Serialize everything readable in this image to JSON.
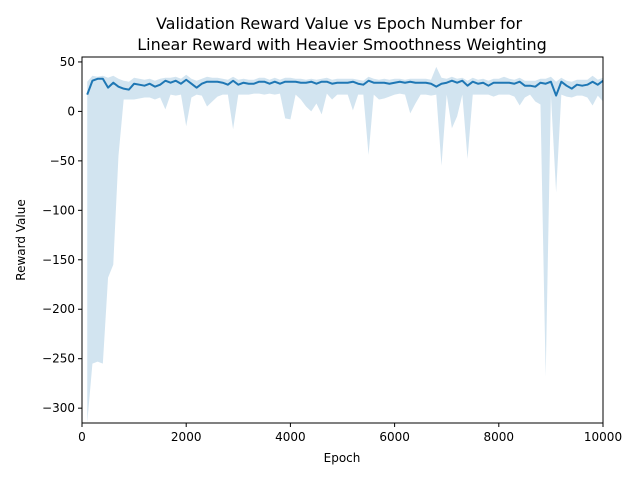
{
  "chart_data": {
    "type": "line",
    "title_line1": "Validation Reward Value vs Epoch Number for",
    "title_line2": "Linear Reward with Heavier Smoothness Weighting",
    "xlabel": "Epoch",
    "ylabel": "Reward Value",
    "xlim": [
      0,
      10000
    ],
    "ylim": [
      -315,
      55
    ],
    "x_ticks": [
      0,
      2000,
      4000,
      6000,
      8000,
      10000
    ],
    "x_tick_labels": [
      "0",
      "2000",
      "4000",
      "6000",
      "8000",
      "10000"
    ],
    "y_ticks": [
      50,
      0,
      -50,
      -100,
      -150,
      -200,
      -250,
      -300
    ],
    "y_tick_labels": [
      "50",
      "0",
      "−50",
      "−100",
      "−150",
      "−200",
      "−250",
      "−300"
    ],
    "grid": false,
    "colors": {
      "line": "#1f77b4",
      "band": "#1f77b4"
    },
    "series": [
      {
        "x": [
          100,
          200,
          300,
          400,
          500,
          600,
          700,
          800,
          900,
          1000,
          1100,
          1200,
          1300,
          1400,
          1500,
          1600,
          1700,
          1800,
          1900,
          2000,
          2100,
          2200,
          2300,
          2400,
          2500,
          2600,
          2700,
          2800,
          2900,
          3000,
          3100,
          3200,
          3300,
          3400,
          3500,
          3600,
          3700,
          3800,
          3900,
          4000,
          4100,
          4200,
          4300,
          4400,
          4500,
          4600,
          4700,
          4800,
          4900,
          5000,
          5100,
          5200,
          5300,
          5400,
          5500,
          5600,
          5700,
          5800,
          5900,
          6000,
          6100,
          6200,
          6300,
          6400,
          6500,
          6600,
          6700,
          6800,
          6900,
          7000,
          7100,
          7200,
          7300,
          7400,
          7500,
          7600,
          7700,
          7800,
          7900,
          8000,
          8100,
          8200,
          8300,
          8400,
          8500,
          8600,
          8700,
          8800,
          8900,
          9000,
          9100,
          9200,
          9300,
          9400,
          9500,
          9600,
          9700,
          9800,
          9900,
          10000
        ],
        "y": [
          17,
          31,
          33,
          33,
          24,
          29,
          25,
          23,
          22,
          28,
          27,
          26,
          28,
          25,
          27,
          31,
          29,
          31,
          28,
          32,
          28,
          24,
          28,
          30,
          30,
          30,
          29,
          27,
          31,
          27,
          29,
          28,
          28,
          30,
          30,
          28,
          30,
          28,
          30,
          30,
          30,
          29,
          29,
          30,
          28,
          30,
          30,
          28,
          29,
          29,
          29,
          30,
          28,
          27,
          31,
          29,
          29,
          29,
          28,
          29,
          30,
          29,
          30,
          29,
          29,
          29,
          28,
          25,
          28,
          29,
          31,
          29,
          31,
          26,
          30,
          28,
          29,
          26,
          29,
          29,
          29,
          29,
          28,
          30,
          26,
          26,
          25,
          29,
          28,
          30,
          16,
          30,
          26,
          23,
          27,
          26,
          27,
          30,
          27,
          31
        ],
        "lower": [
          -315,
          -255,
          -253,
          -255,
          -168,
          -155,
          -45,
          12,
          12,
          12,
          13,
          14,
          14,
          12,
          14,
          2,
          17,
          16,
          17,
          -15,
          14,
          17,
          16,
          5,
          10,
          15,
          17,
          17,
          -18,
          17,
          17,
          17,
          18,
          18,
          17,
          18,
          17,
          18,
          -7,
          -8,
          17,
          12,
          5,
          0,
          8,
          -3,
          18,
          12,
          17,
          17,
          17,
          1,
          17,
          17,
          -44,
          17,
          12,
          13,
          15,
          17,
          18,
          17,
          -2,
          8,
          17,
          17,
          16,
          17,
          -55,
          17,
          -17,
          -5,
          17,
          -48,
          17,
          17,
          17,
          17,
          15,
          17,
          17,
          17,
          15,
          6,
          14,
          17,
          10,
          7,
          -268,
          17,
          -82,
          17,
          15,
          14,
          16,
          16,
          14,
          6,
          16,
          10
        ],
        "upper": [
          30,
          36,
          35,
          36,
          34,
          36,
          33,
          31,
          30,
          34,
          33,
          32,
          33,
          31,
          33,
          34,
          34,
          35,
          33,
          37,
          33,
          31,
          33,
          35,
          34,
          34,
          33,
          32,
          35,
          32,
          33,
          32,
          32,
          34,
          34,
          32,
          34,
          32,
          34,
          34,
          33,
          33,
          32,
          33,
          32,
          33,
          34,
          32,
          33,
          33,
          33,
          33,
          32,
          31,
          35,
          33,
          32,
          33,
          32,
          33,
          33,
          32,
          33,
          33,
          33,
          33,
          32,
          45,
          34,
          33,
          35,
          33,
          34,
          31,
          34,
          32,
          33,
          31,
          33,
          33,
          35,
          33,
          32,
          34,
          31,
          31,
          31,
          33,
          33,
          35,
          30,
          34,
          31,
          30,
          32,
          32,
          32,
          36,
          32,
          34
        ]
      }
    ]
  }
}
